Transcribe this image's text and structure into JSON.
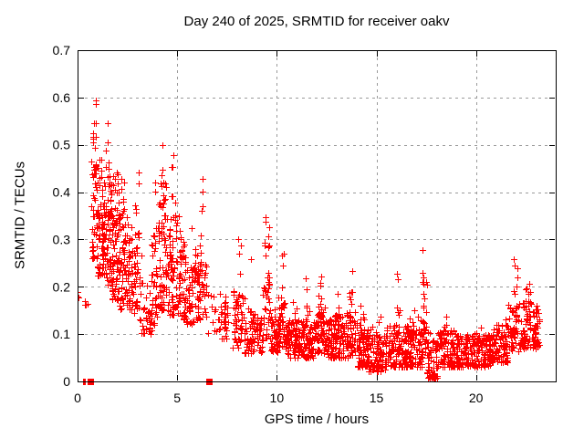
{
  "chart_data": {
    "type": "scatter",
    "title": "Day 240 of 2025, SRMTID for receiver oakv",
    "xlabel": "GPS time / hours",
    "ylabel": "SRMTID / TECUs",
    "xlim": [
      0,
      24
    ],
    "ylim": [
      0,
      0.7
    ],
    "xticks": [
      0,
      5,
      10,
      15,
      20
    ],
    "xtick_labels": [
      "0",
      "5",
      "10",
      "15",
      "20"
    ],
    "yticks": [
      0,
      0.1,
      0.2,
      0.3,
      0.4,
      0.5,
      0.6,
      0.7
    ],
    "ytick_labels": [
      "0",
      "0.1",
      "0.2",
      "0.3",
      "0.4",
      "0.5",
      "0.6",
      "0.7"
    ],
    "grid": true,
    "legend_position": "none",
    "marker": {
      "shape": "plus",
      "color": "#ff0000",
      "size": 7
    },
    "axis_color": "#000000",
    "grid_color": "#9a9a9a",
    "background": "#ffffff",
    "y_max_point": {
      "x": 0.82,
      "y": 0.63
    },
    "zero_axis_markers": [
      {
        "x": 0.31,
        "w": 3,
        "h": 7
      },
      {
        "x": 0.66,
        "w": 7,
        "h": 7
      },
      {
        "x": 6.59,
        "w": 7,
        "h": 7
      }
    ],
    "density_segments": [
      [
        0.0,
        0.08,
        3,
        0.17,
        0.19,
        0.19,
        0,
        null
      ],
      [
        0.3,
        0.5,
        4,
        0.16,
        0.18,
        0.18,
        0,
        null
      ],
      [
        0.7,
        1.0,
        55,
        0.26,
        0.46,
        0.63,
        0.28,
        0.82
      ],
      [
        1.0,
        1.4,
        70,
        0.22,
        0.42,
        0.47,
        0.1,
        1.2
      ],
      [
        1.4,
        1.7,
        60,
        0.2,
        0.42,
        0.56,
        0.18,
        1.55
      ],
      [
        1.7,
        2.1,
        80,
        0.17,
        0.4,
        0.45,
        0.08,
        1.9
      ],
      [
        2.1,
        2.6,
        80,
        0.15,
        0.36,
        0.43,
        0.08,
        2.3
      ],
      [
        2.6,
        3.1,
        60,
        0.14,
        0.33,
        0.47,
        0.12,
        2.95
      ],
      [
        3.1,
        3.7,
        42,
        0.1,
        0.22,
        0.3,
        0.05,
        null
      ],
      [
        3.7,
        4.05,
        40,
        0.12,
        0.3,
        0.47,
        0.15,
        3.9
      ],
      [
        4.05,
        4.5,
        75,
        0.15,
        0.38,
        0.5,
        0.15,
        4.3
      ],
      [
        4.5,
        5.0,
        70,
        0.14,
        0.34,
        0.52,
        0.1,
        4.8
      ],
      [
        5.0,
        5.45,
        55,
        0.13,
        0.3,
        0.35,
        0.08,
        5.15
      ],
      [
        5.45,
        6.0,
        50,
        0.12,
        0.24,
        0.33,
        0.08,
        5.8
      ],
      [
        6.0,
        6.5,
        55,
        0.13,
        0.3,
        0.44,
        0.12,
        6.2
      ],
      [
        6.5,
        7.1,
        12,
        0.1,
        0.18,
        0.2,
        0.05,
        null
      ],
      [
        7.1,
        7.6,
        35,
        0.09,
        0.18,
        0.21,
        0.05,
        null
      ],
      [
        7.8,
        8.4,
        55,
        0.07,
        0.2,
        0.31,
        0.12,
        8.1
      ],
      [
        8.4,
        9.3,
        75,
        0.06,
        0.15,
        0.27,
        0.06,
        8.6
      ],
      [
        9.3,
        9.7,
        45,
        0.09,
        0.22,
        0.35,
        0.2,
        9.5
      ],
      [
        9.7,
        10.1,
        50,
        0.06,
        0.14,
        0.18,
        0.05,
        null
      ],
      [
        10.1,
        10.5,
        45,
        0.07,
        0.16,
        0.29,
        0.15,
        10.3
      ],
      [
        10.5,
        11.2,
        80,
        0.05,
        0.13,
        0.17,
        0.05,
        null
      ],
      [
        11.2,
        12.0,
        90,
        0.05,
        0.13,
        0.22,
        0.06,
        11.5
      ],
      [
        12.0,
        12.5,
        70,
        0.06,
        0.16,
        0.25,
        0.1,
        12.2
      ],
      [
        12.5,
        13.5,
        110,
        0.05,
        0.14,
        0.2,
        0.06,
        13.0
      ],
      [
        13.5,
        14.0,
        60,
        0.05,
        0.15,
        0.27,
        0.1,
        13.75
      ],
      [
        14.0,
        14.6,
        80,
        0.03,
        0.12,
        0.18,
        0.06,
        14.3
      ],
      [
        14.6,
        15.5,
        100,
        0.02,
        0.1,
        0.14,
        0.04,
        null
      ],
      [
        15.5,
        16.5,
        110,
        0.03,
        0.12,
        0.23,
        0.06,
        16.1
      ],
      [
        16.5,
        17.3,
        90,
        0.03,
        0.11,
        0.16,
        0.05,
        null
      ],
      [
        17.3,
        17.55,
        30,
        0.06,
        0.16,
        0.28,
        0.25,
        17.42
      ],
      [
        17.55,
        18.1,
        60,
        0.005,
        0.09,
        0.12,
        0.04,
        null
      ],
      [
        18.1,
        19.0,
        95,
        0.03,
        0.11,
        0.18,
        0.05,
        18.5
      ],
      [
        19.0,
        20.0,
        110,
        0.03,
        0.1,
        0.14,
        0.04,
        null
      ],
      [
        20.0,
        20.8,
        90,
        0.03,
        0.1,
        0.13,
        0.04,
        null
      ],
      [
        20.8,
        21.6,
        85,
        0.04,
        0.12,
        0.16,
        0.05,
        null
      ],
      [
        21.6,
        22.15,
        55,
        0.06,
        0.17,
        0.3,
        0.15,
        22.0
      ],
      [
        22.15,
        23.2,
        110,
        0.07,
        0.17,
        0.22,
        0.08,
        22.6
      ]
    ],
    "seed": 7
  }
}
